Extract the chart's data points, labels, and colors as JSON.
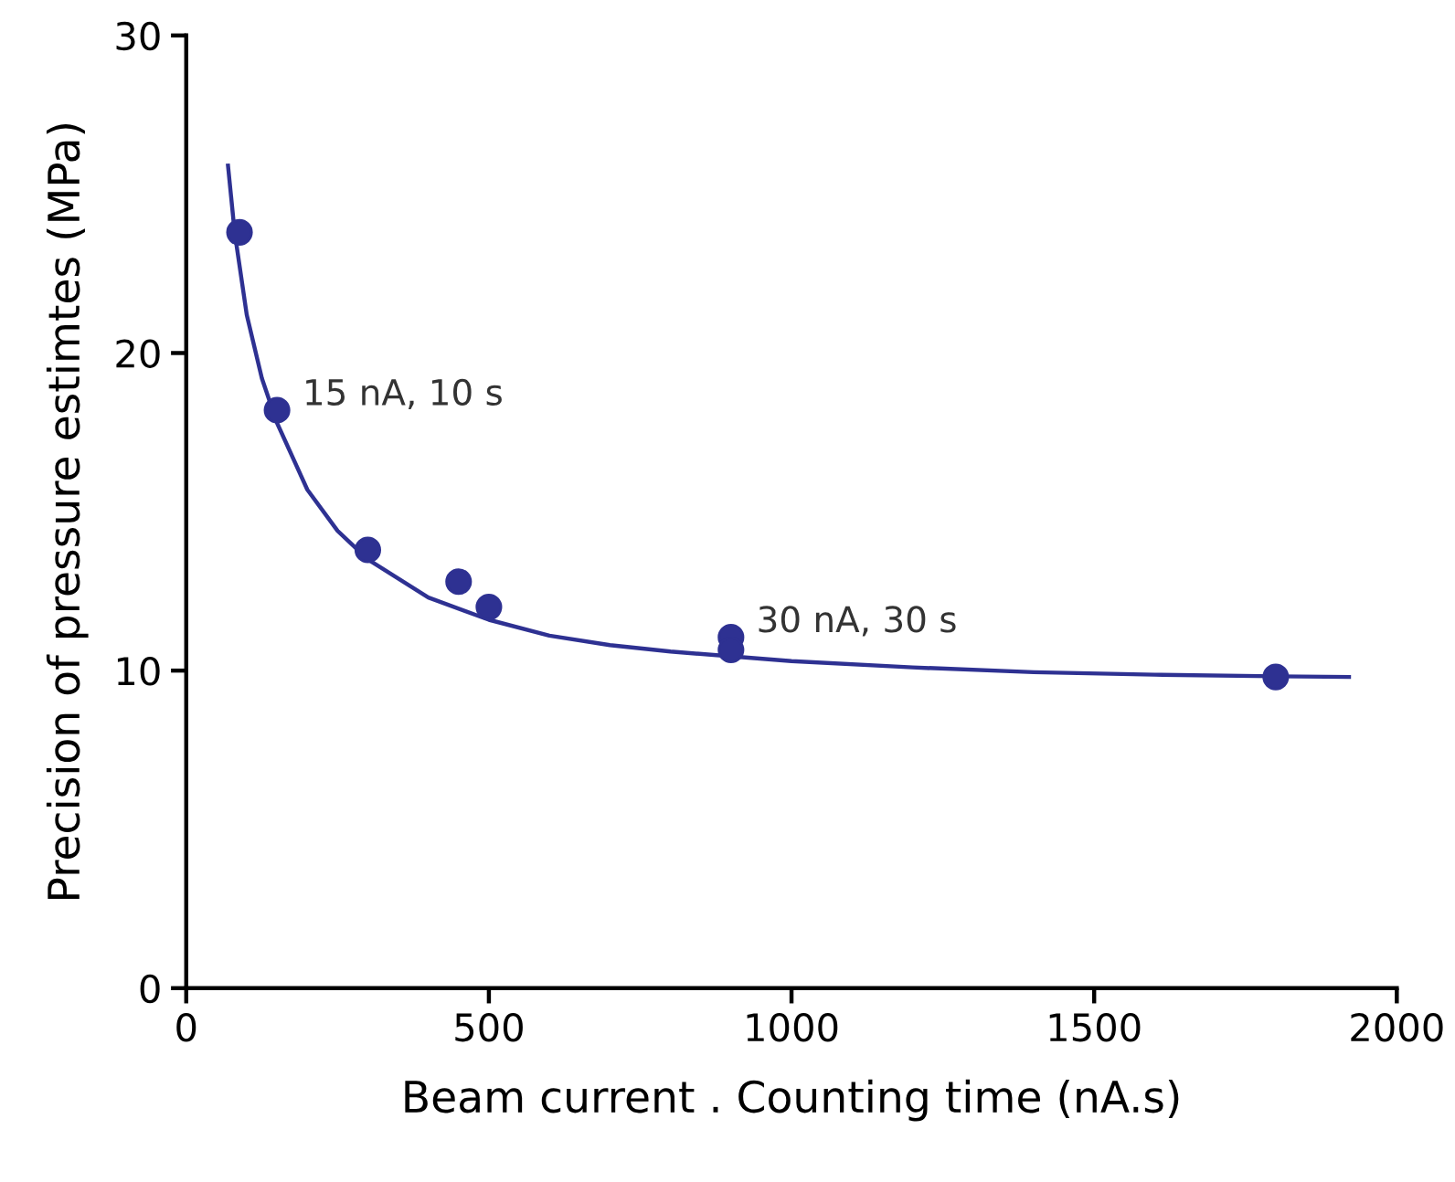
{
  "chart_data": {
    "type": "scatter",
    "xlabel": "Beam current . Counting time (nA.s)",
    "ylabel": "Precision of pressure estimtes (MPa)",
    "xlim": [
      0,
      2000
    ],
    "ylim": [
      0,
      30
    ],
    "xticks": [
      0,
      500,
      1000,
      1500,
      2000
    ],
    "yticks": [
      0,
      10,
      20,
      30
    ],
    "grid": false,
    "legend": false,
    "marker": "circle",
    "series": [
      {
        "color": "#2e3192",
        "x": [
          88,
          150,
          300,
          450,
          500,
          900,
          900,
          1800
        ],
        "values": [
          23.8,
          18.2,
          13.8,
          12.8,
          12.0,
          11.05,
          10.65,
          9.8
        ]
      },
      {
        "type": "line",
        "color": "#2e3192",
        "line_style": "solid",
        "marker": "none",
        "x": [
          69,
          80,
          100,
          125,
          150,
          200,
          250,
          300,
          400,
          500,
          600,
          700,
          800,
          900,
          1000,
          1200,
          1400,
          1600,
          1800,
          1921
        ],
        "values": [
          25.9,
          23.8,
          21.2,
          19.2,
          17.8,
          15.7,
          14.4,
          13.5,
          12.3,
          11.6,
          11.1,
          10.8,
          10.6,
          10.45,
          10.3,
          10.1,
          9.95,
          9.87,
          9.82,
          9.8
        ]
      }
    ],
    "annotations": [
      {
        "text": "15 nA, 10 s",
        "x": 150,
        "y": 18.2
      },
      {
        "text": "30 nA, 30 s",
        "x": 900,
        "y": 11.05
      }
    ]
  }
}
